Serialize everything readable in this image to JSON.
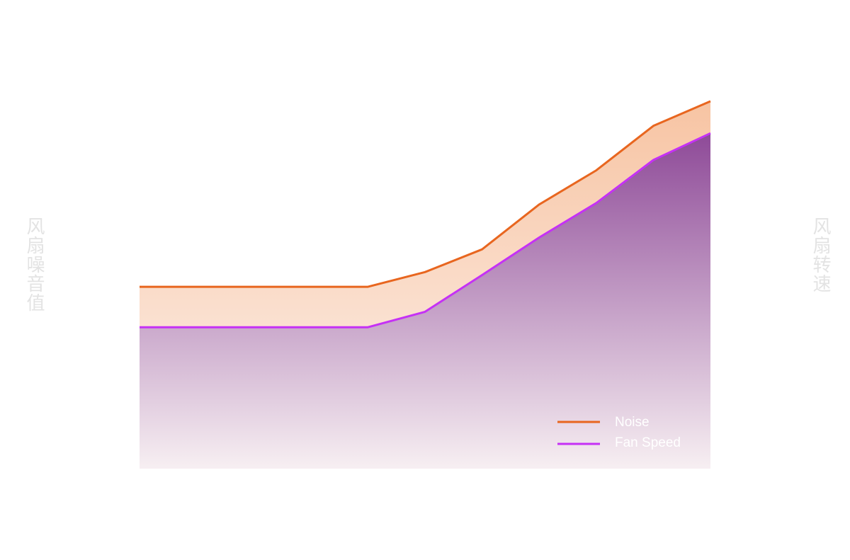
{
  "chart_data": {
    "type": "area",
    "title": "",
    "xlabel": "",
    "ylabel": "风扇噪音值",
    "y2label": "风扇转速",
    "x": [
      0,
      1,
      2,
      3,
      4,
      5,
      6,
      7,
      8,
      9,
      10
    ],
    "xlim": [
      0,
      10
    ],
    "ylim": [
      0,
      100
    ],
    "y2lim": [
      0,
      100
    ],
    "grid": false,
    "legend": "bottom-right",
    "series": [
      {
        "name": "Noise",
        "axis": "left",
        "color": "#e8661f",
        "fill_top": "#f7c4a3",
        "fill_bottom": "#fdf3ee",
        "values": [
          49.5,
          49.5,
          49.5,
          49.5,
          49.5,
          53.5,
          59.7,
          71.9,
          81.2,
          93.3,
          100
        ]
      },
      {
        "name": "Fan Speed",
        "axis": "right",
        "color": "#c531f5",
        "fill_top": "#8e4a98",
        "fill_bottom": "#f7eff2",
        "values": [
          38.5,
          38.5,
          38.5,
          38.5,
          38.5,
          42.7,
          52.7,
          62.9,
          72.3,
          84.0,
          91.3
        ]
      }
    ]
  }
}
